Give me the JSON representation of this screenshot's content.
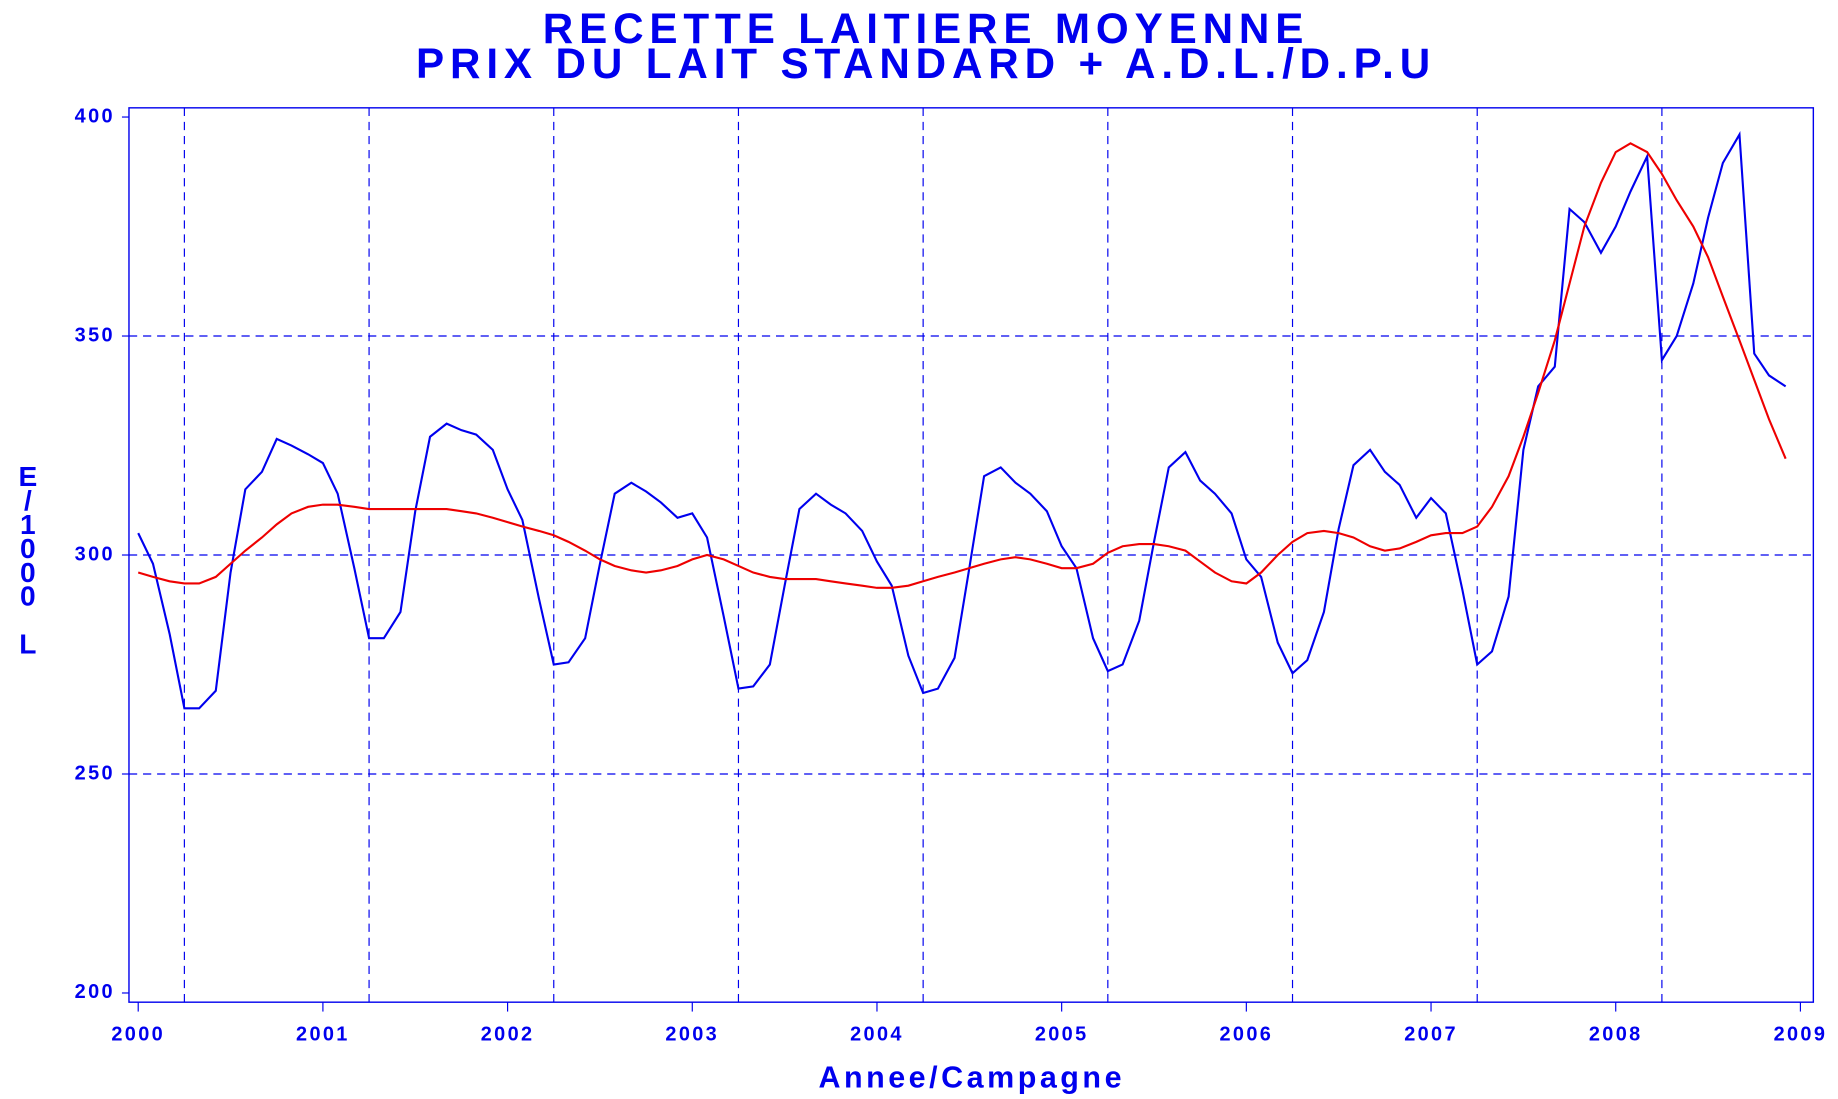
{
  "chart_data": {
    "type": "line",
    "title": "RECETTE LAITIERE MOYENNE",
    "subtitle": "PRIX DU LAIT STANDARD + A.D.L./D.P.U",
    "x_label": "Annee/Campagne",
    "y_label": "E/1000 L",
    "xlim": [
      1999.95,
      2009.07
    ],
    "ylim": [
      197.9,
      402.1
    ],
    "xticks": [
      2000,
      2001,
      2002,
      2003,
      2004,
      2005,
      2006,
      2007,
      2008,
      2009
    ],
    "yticks": [
      200,
      250,
      300,
      350,
      400
    ],
    "ygrid": [
      250,
      300,
      350
    ],
    "xgrid": [
      2000.25,
      2001.25,
      2002.25,
      2003.25,
      2004.25,
      2005.25,
      2006.25,
      2007.25,
      2008.25
    ],
    "grid": true,
    "axis_color": "#0000ee",
    "x": [
      2000,
      2000.08,
      2000.17,
      2000.25,
      2000.33,
      2000.42,
      2000.5,
      2000.58,
      2000.67,
      2000.75,
      2000.83,
      2000.92,
      2001,
      2001.08,
      2001.17,
      2001.25,
      2001.33,
      2001.42,
      2001.5,
      2001.58,
      2001.67,
      2001.75,
      2001.83,
      2001.92,
      2002,
      2002.08,
      2002.17,
      2002.25,
      2002.33,
      2002.42,
      2002.5,
      2002.58,
      2002.67,
      2002.75,
      2002.83,
      2002.92,
      2003,
      2003.08,
      2003.17,
      2003.25,
      2003.33,
      2003.42,
      2003.5,
      2003.58,
      2003.67,
      2003.75,
      2003.83,
      2003.92,
      2004,
      2004.08,
      2004.17,
      2004.25,
      2004.33,
      2004.42,
      2004.5,
      2004.58,
      2004.67,
      2004.75,
      2004.83,
      2004.92,
      2005,
      2005.08,
      2005.17,
      2005.25,
      2005.33,
      2005.42,
      2005.5,
      2005.58,
      2005.67,
      2005.75,
      2005.83,
      2005.92,
      2006,
      2006.08,
      2006.17,
      2006.25,
      2006.33,
      2006.42,
      2006.5,
      2006.58,
      2006.67,
      2006.75,
      2006.83,
      2006.92,
      2007,
      2007.08,
      2007.17,
      2007.25,
      2007.33,
      2007.42,
      2007.5,
      2007.58,
      2007.67,
      2007.75,
      2007.83,
      2007.92,
      2008,
      2008.08,
      2008.17,
      2008.25,
      2008.33,
      2008.42,
      2008.5,
      2008.58,
      2008.67,
      2008.75,
      2008.83,
      2008.92
    ],
    "series": [
      {
        "color": "#0000ee",
        "values": [
          305,
          298,
          282,
          265,
          265,
          269,
          296,
          315,
          319,
          326.5,
          325,
          323,
          321,
          314,
          297,
          281,
          281,
          287,
          310,
          327,
          330,
          328.5,
          327.5,
          324,
          315,
          308,
          290,
          275,
          275.5,
          281,
          298,
          314,
          316.5,
          314.5,
          312,
          308.5,
          309.5,
          304,
          286,
          269.5,
          270,
          275,
          293,
          310.5,
          314,
          311.5,
          309.5,
          305.5,
          298.5,
          293,
          277,
          268.5,
          269.5,
          276.5,
          297,
          318,
          320,
          316.5,
          314,
          310,
          302,
          297,
          281,
          273.5,
          275,
          285,
          303,
          320,
          323.5,
          317,
          314,
          309.5,
          299,
          295,
          280,
          273,
          276,
          287,
          306,
          320.5,
          324,
          319,
          316,
          308.5,
          313,
          309.5,
          292,
          275,
          278,
          290.5,
          324,
          338.5,
          343,
          379,
          376,
          369,
          375,
          383,
          391,
          344.5,
          350,
          362,
          377,
          389.5,
          396,
          346,
          341,
          338.5
        ]
      },
      {
        "color": "#ee0000",
        "values": [
          296,
          295,
          294,
          293.5,
          293.5,
          295,
          298,
          301,
          304,
          307,
          309.5,
          311,
          311.5,
          311.5,
          311,
          310.5,
          310.5,
          310.5,
          310.5,
          310.5,
          310.5,
          310,
          309.5,
          308.5,
          307.5,
          306.5,
          305.5,
          304.5,
          303,
          301,
          299,
          297.5,
          296.5,
          296,
          296.5,
          297.5,
          299,
          300,
          299,
          297.5,
          296,
          295,
          294.5,
          294.5,
          294.5,
          294,
          293.5,
          293,
          292.5,
          292.5,
          293,
          294,
          295,
          296,
          297,
          298,
          299,
          299.5,
          299,
          298,
          297,
          297,
          298,
          300.5,
          302,
          302.5,
          302.5,
          302,
          301,
          298.5,
          296,
          294,
          293.5,
          296,
          300,
          303,
          305,
          305.5,
          305,
          304,
          302,
          301,
          301.5,
          303,
          304.5,
          305,
          305,
          306.5,
          311,
          318,
          327,
          337,
          349,
          362,
          375,
          385,
          392,
          394,
          392,
          387,
          381,
          375,
          368,
          359,
          349,
          340,
          331,
          322
        ]
      }
    ]
  }
}
